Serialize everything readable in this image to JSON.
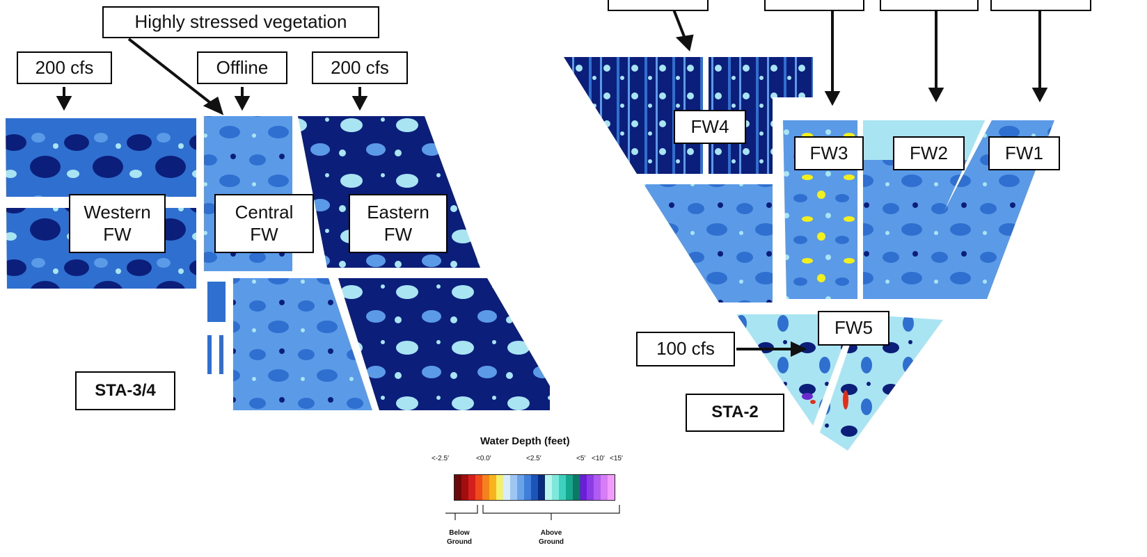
{
  "map": {
    "colors": {
      "deep": "#0b1f7a",
      "mid": "#2f6fcf",
      "light": "#5b9ae6",
      "pale": "#a9e4f3",
      "yellow": "#f3ef1a",
      "red": "#e0301a",
      "purple": "#6a2ad0"
    },
    "annotations": {
      "highly_stressed": "Highly stressed vegetation",
      "flow_west": "200 cfs",
      "flow_central": "Offline",
      "flow_east": "200 cfs",
      "flow_fw5": "100 cfs"
    },
    "sta34": {
      "site_label": "STA-3/4",
      "western": "Western\nFW",
      "central": "Central\nFW",
      "eastern": "Eastern\nFW"
    },
    "sta2": {
      "site_label": "STA-2",
      "fw1": "FW1",
      "fw2": "FW2",
      "fw3": "FW3",
      "fw4": "FW4",
      "fw5": "FW5"
    }
  },
  "legend": {
    "title": "Water Depth (feet)",
    "ticks": [
      "<-2.5′",
      "<0.0′",
      "<2.5′",
      "<5′",
      "<10′",
      "<15′"
    ],
    "below_label": "Below\nGround",
    "above_label": "Above\nGround",
    "swatch_colors": [
      "#6b0a0a",
      "#a40d0d",
      "#d51e1e",
      "#ee4a1a",
      "#f5821d",
      "#f7b41e",
      "#f4f06a",
      "#d7ecff",
      "#9fc6f2",
      "#6aa3e8",
      "#3d7fdb",
      "#1d54b8",
      "#0a2a7a",
      "#b9f6ef",
      "#7ee8db",
      "#3fcfbd",
      "#16a78f",
      "#0a7a63",
      "#6a1ed6",
      "#8b3ce6",
      "#b15cf0",
      "#d77cf7",
      "#f29cfb"
    ]
  }
}
